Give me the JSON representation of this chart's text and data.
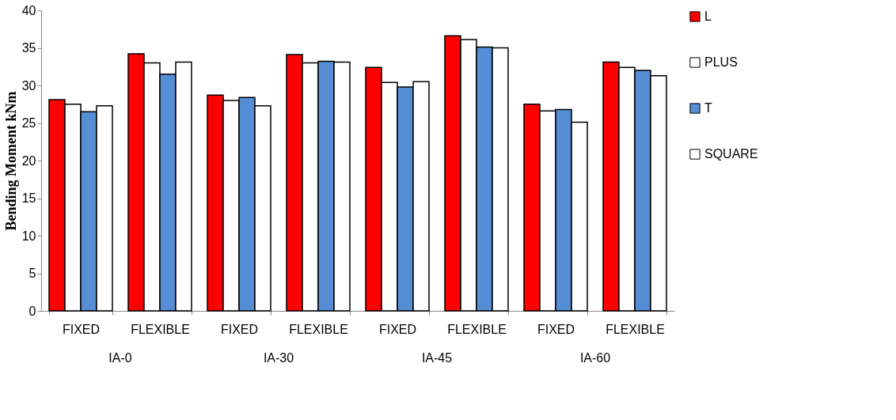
{
  "chart_data": {
    "type": "bar",
    "ylabel": "Bending Moment kNm",
    "categories": [
      "FIXED",
      "FLEXIBLE",
      "FIXED",
      "FLEXIBLE",
      "FIXED",
      "FLEXIBLE",
      "FIXED",
      "FLEXIBLE"
    ],
    "series": [
      {
        "name": "L",
        "color": "#ff0000",
        "values": [
          28.1,
          34.2,
          28.7,
          34.1,
          32.4,
          36.6,
          27.5,
          33.1
        ]
      },
      {
        "name": "PLUS",
        "color": "#ffffff",
        "values": [
          27.5,
          33.0,
          28.0,
          33.0,
          30.4,
          36.1,
          26.6,
          32.4
        ]
      },
      {
        "name": "T",
        "color": "#558ed5",
        "values": [
          26.5,
          31.5,
          28.4,
          33.2,
          29.8,
          35.1,
          26.8,
          32.0
        ]
      },
      {
        "name": "SQUARE",
        "color": "#ffffff",
        "values": [
          27.3,
          33.1,
          27.3,
          33.1,
          30.5,
          35.0,
          25.1,
          31.3
        ]
      }
    ],
    "annotations": [
      "IA-0",
      "IA-30",
      "IA-45",
      "IA-60"
    ],
    "ylim": [
      0,
      40
    ],
    "yticks": [
      0,
      5,
      10,
      15,
      20,
      25,
      30,
      35,
      40
    ],
    "grid": false,
    "legend": "right"
  }
}
